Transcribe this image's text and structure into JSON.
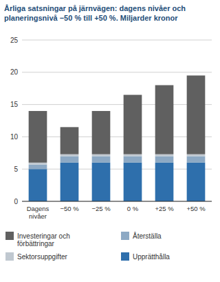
{
  "chart_data": {
    "type": "bar",
    "stacked": true,
    "title": "Årliga satsningar på järnvägen: dagens nivåer och\nplaneringsnivå −50 % till +50 %. Miljarder kronor",
    "categories": [
      "Dagens\nnivåer",
      "−50 %",
      "−25 %",
      "0 %",
      "+25 %",
      "+50 %"
    ],
    "series": [
      {
        "name": "Upprätthålla",
        "color": "#2e6fac",
        "values": [
          5.0,
          6.0,
          6.0,
          6.0,
          6.0,
          6.0
        ]
      },
      {
        "name": "Återställa",
        "color": "#8da9c4",
        "values": [
          0.7,
          1.0,
          1.0,
          1.0,
          1.0,
          1.0
        ]
      },
      {
        "name": "Sektorsuppgifter",
        "color": "#c0c8d0",
        "values": [
          0.3,
          0.3,
          0.3,
          0.3,
          0.3,
          0.3
        ]
      },
      {
        "name": "Investeringar och\nförbättringar",
        "color": "#606060",
        "values": [
          8.0,
          4.2,
          6.7,
          9.2,
          10.7,
          12.2
        ]
      }
    ],
    "ylim": [
      0,
      25
    ],
    "yticks": [
      0,
      5,
      10,
      15,
      20,
      25
    ],
    "grid": true,
    "legend": "bottom"
  }
}
